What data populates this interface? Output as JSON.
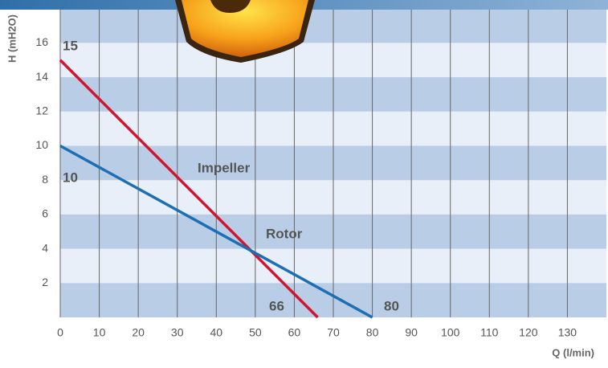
{
  "chart_data": {
    "type": "line",
    "x_label": "Q (l/min)",
    "y_label": "H (mH2O)",
    "series": [
      {
        "name": "Impeller",
        "color": "#d2142e",
        "x": [
          0,
          66
        ],
        "values": [
          15,
          0
        ]
      },
      {
        "name": "Rotor",
        "color": "#1c6fb3",
        "x": [
          0,
          80
        ],
        "values": [
          10,
          0
        ]
      }
    ],
    "annotations": [
      {
        "text": "15",
        "color": "#d2142e"
      },
      {
        "text": "66",
        "color": "#d2142e"
      },
      {
        "text": "Impeller",
        "color": "#d2142e"
      },
      {
        "text": "10",
        "color": "#1c6fb3"
      },
      {
        "text": "80",
        "color": "#1c6fb3"
      },
      {
        "text": "Rotor",
        "color": "#1c6fb3"
      }
    ],
    "xlim": [
      0,
      140
    ],
    "ylim": [
      0,
      18.5
    ],
    "xticks": [
      0,
      10,
      20,
      30,
      40,
      50,
      60,
      70,
      80,
      90,
      100,
      110,
      120,
      130
    ],
    "yticks": [
      2,
      4,
      6,
      8,
      10,
      12,
      14,
      16
    ],
    "grid": true
  }
}
